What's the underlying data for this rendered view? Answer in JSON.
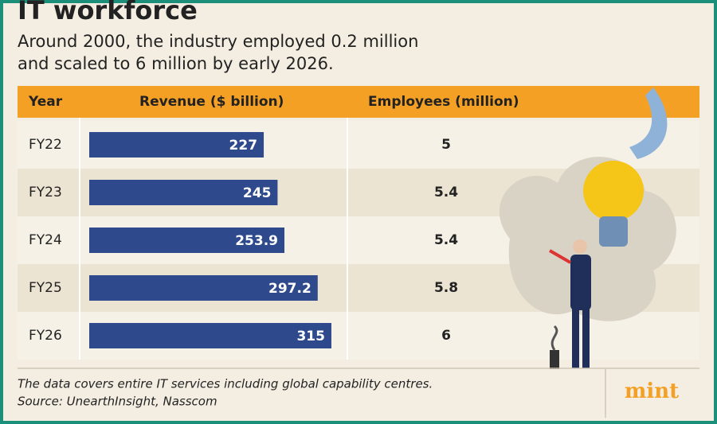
{
  "chart_data": {
    "type": "bar",
    "title": "IT workforce",
    "subtitle": [
      "Around 2000, the industry employed 0.2 million",
      "and scaled to 6 million by early 2026."
    ],
    "columns": [
      "Year",
      "Revenue ($ billion)",
      "Employees (million)"
    ],
    "categories": [
      "FY22",
      "FY23",
      "FY24",
      "FY25",
      "FY26"
    ],
    "values": [
      227,
      245,
      253.9,
      297.2,
      315
    ],
    "employees": [
      5,
      5.4,
      5.4,
      5.8,
      6
    ],
    "color": "#2f4a8c",
    "note": "The data covers entire IT services including global capability centres.",
    "source": "Source: UnearthInsight, Nasscom",
    "brand": "mint"
  }
}
